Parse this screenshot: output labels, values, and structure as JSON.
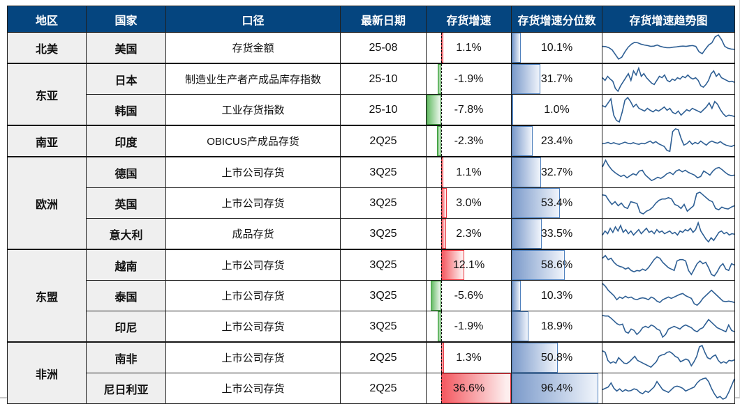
{
  "colors": {
    "header_bg": "#05457f",
    "header_text": "#ffffff",
    "label_bg": "#efefef",
    "positive_bar": "#f4575f",
    "positive_bar_border": "#e8343d",
    "negative_bar": "#66bb66",
    "negative_bar_border": "#3f9e3f",
    "percentile_bar": "#7b9aca",
    "percentile_bar_border": "#4f81bd",
    "sparkline": "#2e5f94",
    "grid": "#1f1f1f"
  },
  "growth_axis": {
    "min": -7.8,
    "max": 36.6
  },
  "table": {
    "headers": [
      "地区",
      "国家",
      "口径",
      "最新日期",
      "存货增速",
      "存货增速分位数",
      "存货增速趋势图"
    ],
    "rows": [
      {
        "region": "北美",
        "region_rowspan": 1,
        "group_start": false,
        "country": "美国",
        "metric": "存货金额",
        "date": "25-08",
        "growth": 1.1,
        "growth_label": "1.1%",
        "percentile": 10.1,
        "pct_label": "10.1%",
        "spark": [
          0.55,
          0.54,
          0.5,
          0.42,
          0.25,
          0.08,
          0.15,
          0.35,
          0.52,
          0.63,
          0.7,
          0.68,
          0.63,
          0.6,
          0.58,
          0.55,
          0.56,
          0.6,
          0.55,
          0.52,
          0.5,
          0.5,
          0.52,
          0.53,
          0.55,
          0.56,
          0.55,
          0.57,
          0.58,
          0.55,
          0.35,
          0.28,
          0.45,
          0.6,
          0.68,
          0.9,
          0.97,
          0.8,
          0.55,
          0.48,
          0.45,
          0.44
        ]
      },
      {
        "region": "东亚",
        "region_rowspan": 2,
        "group_start": true,
        "country": "日本",
        "metric": "制造业生产者产成品库存指数",
        "date": "25-10",
        "growth": -1.9,
        "growth_label": "-1.9%",
        "percentile": 31.7,
        "pct_label": "31.7%",
        "spark": [
          0.55,
          0.45,
          0.6,
          0.5,
          0.42,
          0.15,
          0.05,
          0.25,
          0.4,
          0.55,
          0.7,
          0.45,
          0.8,
          0.65,
          0.9,
          0.6,
          0.7,
          0.55,
          0.45,
          0.35,
          0.3,
          0.45,
          0.6,
          0.55,
          0.65,
          0.45,
          0.4,
          0.5,
          0.45,
          0.55,
          0.5,
          0.6,
          0.55,
          0.65,
          0.55,
          0.5,
          0.55,
          0.45,
          0.25,
          0.2,
          0.3,
          0.45,
          0.7,
          0.8,
          0.6,
          0.7,
          0.55,
          0.5,
          0.45,
          0.4,
          0.42,
          0.38
        ]
      },
      {
        "region": null,
        "region_rowspan": 0,
        "group_start": false,
        "country": "韩国",
        "metric": "工业存货指数",
        "date": "25-10",
        "growth": -7.8,
        "growth_label": "-7.8%",
        "percentile": 1.0,
        "pct_label": "1.0%",
        "spark": [
          0.65,
          0.6,
          0.75,
          0.9,
          0.3,
          0.1,
          0.05,
          0.4,
          0.85,
          0.95,
          0.8,
          0.6,
          0.7,
          0.55,
          0.5,
          0.45,
          0.55,
          0.48,
          0.42,
          0.5,
          0.45,
          0.52,
          0.6,
          0.48,
          0.55,
          0.4,
          0.35,
          0.45,
          0.3,
          0.4,
          0.5,
          0.45,
          0.55,
          0.5,
          0.45,
          0.4,
          0.5,
          0.6,
          0.75,
          0.55,
          0.8,
          0.7,
          0.5,
          0.35,
          0.25,
          0.3,
          0.28,
          0.25
        ]
      },
      {
        "region": "南亚",
        "region_rowspan": 1,
        "group_start": true,
        "country": "印度",
        "metric": "OBICUS产成品存货",
        "date": "2Q25",
        "growth": -2.3,
        "growth_label": "-2.3%",
        "percentile": 23.4,
        "pct_label": "23.4%",
        "spark": [
          0.4,
          0.42,
          0.45,
          0.4,
          0.44,
          0.4,
          0.38,
          0.42,
          0.46,
          0.42,
          0.4,
          0.44,
          0.4,
          0.38,
          0.42,
          0.4,
          0.45,
          0.5,
          0.42,
          0.48,
          0.4,
          0.35,
          0.3,
          0.15,
          0.12,
          0.85,
          0.95,
          0.92,
          0.6,
          0.35,
          0.4,
          0.5,
          0.38,
          0.45,
          0.4,
          0.5,
          0.42,
          0.35,
          0.45,
          0.5,
          0.45,
          0.42,
          0.48,
          0.4,
          0.35,
          0.32,
          0.3,
          0.35
        ]
      },
      {
        "region": "欧洲",
        "region_rowspan": 3,
        "group_start": true,
        "country": "德国",
        "metric": "上市公司存货",
        "date": "3Q25",
        "growth": 1.1,
        "growth_label": "1.1%",
        "percentile": 32.7,
        "pct_label": "32.7%",
        "spark": [
          0.7,
          0.95,
          0.75,
          0.6,
          0.5,
          0.42,
          0.35,
          0.4,
          0.3,
          0.38,
          0.45,
          0.4,
          0.55,
          0.58,
          0.4,
          0.3,
          0.2,
          0.25,
          0.32,
          0.28,
          0.35,
          0.45,
          0.5,
          0.42,
          0.55,
          0.6,
          0.52,
          0.58,
          0.5,
          0.45,
          0.4,
          0.3,
          0.35,
          0.55,
          0.48,
          0.4,
          0.55,
          0.65,
          0.68,
          0.6,
          0.5,
          0.42,
          0.38,
          0.4
        ]
      },
      {
        "region": null,
        "region_rowspan": 0,
        "group_start": false,
        "country": "英国",
        "metric": "上市公司存货",
        "date": "3Q25",
        "growth": 3.0,
        "growth_label": "3.0%",
        "percentile": 53.4,
        "pct_label": "53.4%",
        "spark": [
          0.8,
          0.78,
          0.6,
          0.45,
          0.55,
          0.4,
          0.5,
          0.35,
          0.3,
          0.55,
          0.52,
          0.48,
          0.15,
          0.1,
          0.2,
          0.25,
          0.35,
          0.5,
          0.6,
          0.65,
          0.65,
          0.7,
          0.65,
          0.45,
          0.4,
          0.3,
          0.45,
          0.2,
          0.3,
          0.4,
          0.85,
          0.9,
          0.8,
          0.7,
          0.6,
          0.55,
          0.3,
          0.25,
          0.35,
          0.3,
          0.28,
          0.35,
          0.4
        ]
      },
      {
        "region": null,
        "region_rowspan": 0,
        "group_start": false,
        "country": "意大利",
        "metric": "成品存货",
        "date": "3Q25",
        "growth": 2.3,
        "growth_label": "2.3%",
        "percentile": 33.5,
        "pct_label": "33.5%",
        "spark": [
          0.45,
          0.6,
          0.5,
          0.7,
          0.55,
          0.75,
          0.6,
          0.8,
          0.55,
          0.65,
          0.5,
          0.6,
          0.45,
          0.55,
          0.65,
          0.5,
          0.6,
          0.7,
          0.55,
          0.6,
          0.5,
          0.65,
          0.55,
          0.6,
          0.5,
          0.55,
          0.6,
          0.5,
          0.55,
          0.45,
          0.6,
          0.55,
          0.65,
          0.6,
          0.7,
          0.55,
          0.65,
          0.9,
          0.6,
          0.45,
          0.3,
          0.2,
          0.35,
          0.25,
          0.4,
          0.55,
          0.6,
          0.5,
          0.55,
          0.45,
          0.5,
          0.48
        ]
      },
      {
        "region": "东盟",
        "region_rowspan": 3,
        "group_start": true,
        "country": "越南",
        "metric": "上市公司存货",
        "date": "3Q25",
        "growth": 12.1,
        "growth_label": "12.1%",
        "percentile": 58.6,
        "pct_label": "58.6%",
        "spark": [
          0.75,
          0.85,
          0.7,
          0.75,
          0.6,
          0.5,
          0.45,
          0.42,
          0.35,
          0.4,
          0.3,
          0.25,
          0.3,
          0.28,
          0.35,
          0.3,
          0.4,
          0.55,
          0.7,
          0.8,
          0.75,
          0.6,
          0.5,
          0.4,
          0.35,
          0.3,
          0.65,
          0.7,
          0.7,
          0.65,
          0.3,
          0.15,
          0.35,
          0.55,
          0.65,
          0.55,
          0.6,
          0.4,
          0.15,
          0.1,
          0.25,
          0.45,
          0.55,
          0.35,
          0.3,
          0.55,
          0.5
        ]
      },
      {
        "region": null,
        "region_rowspan": 0,
        "group_start": false,
        "country": "泰国",
        "metric": "上市公司存货",
        "date": "3Q25",
        "growth": -5.6,
        "growth_label": "-5.6%",
        "percentile": 10.3,
        "pct_label": "10.3%",
        "spark": [
          0.95,
          0.85,
          0.7,
          0.6,
          0.5,
          0.35,
          0.45,
          0.4,
          0.48,
          0.42,
          0.45,
          0.38,
          0.35,
          0.4,
          0.42,
          0.4,
          0.35,
          0.45,
          0.4,
          0.3,
          0.25,
          0.35,
          0.4,
          0.45,
          0.4,
          0.45,
          0.5,
          0.55,
          0.58,
          0.5,
          0.45,
          0.4,
          0.2,
          0.15,
          0.25,
          0.4,
          0.5,
          0.6,
          0.7,
          0.6,
          0.5,
          0.4,
          0.3,
          0.28,
          0.3,
          0.28,
          0.25
        ]
      },
      {
        "region": null,
        "region_rowspan": 0,
        "group_start": false,
        "country": "印尼",
        "metric": "上市公司存货",
        "date": "3Q25",
        "growth": -1.9,
        "growth_label": "-1.9%",
        "percentile": 18.9,
        "pct_label": "18.9%",
        "spark": [
          0.9,
          0.88,
          0.88,
          0.8,
          0.7,
          0.6,
          0.55,
          0.58,
          0.3,
          0.25,
          0.4,
          0.35,
          0.2,
          0.3,
          0.45,
          0.5,
          0.45,
          0.55,
          0.5,
          0.4,
          0.35,
          0.1,
          0.2,
          0.4,
          0.45,
          0.5,
          0.45,
          0.4,
          0.5,
          0.55,
          0.5,
          0.45,
          0.35,
          0.3,
          0.4,
          0.45,
          0.6,
          0.75,
          0.65,
          0.55,
          0.45,
          0.4,
          0.35,
          0.3,
          0.55,
          0.35,
          0.3
        ]
      },
      {
        "region": "非洲",
        "region_rowspan": 2,
        "group_start": true,
        "country": "南非",
        "metric": "上市公司存货",
        "date": "2Q25",
        "growth": 1.3,
        "growth_label": "1.3%",
        "percentile": 50.8,
        "pct_label": "50.8%",
        "spark": [
          0.75,
          0.7,
          0.4,
          0.3,
          0.35,
          0.3,
          0.5,
          0.4,
          0.3,
          0.28,
          0.35,
          0.45,
          0.55,
          0.4,
          0.35,
          0.3,
          0.25,
          0.2,
          0.15,
          0.25,
          0.35,
          0.55,
          0.6,
          0.62,
          0.7,
          0.72,
          0.65,
          0.55,
          0.5,
          0.35,
          0.4,
          0.45,
          0.4,
          0.2,
          0.35,
          0.55,
          0.9,
          0.95,
          0.7,
          0.5,
          0.45,
          0.55,
          0.6,
          0.4,
          0.3,
          0.35,
          0.3,
          0.4,
          0.38,
          0.42
        ]
      },
      {
        "region": null,
        "region_rowspan": 0,
        "group_start": false,
        "country": "尼日利亚",
        "metric": "上市公司存货",
        "date": "2Q25",
        "growth": 36.6,
        "growth_label": "36.6%",
        "percentile": 96.4,
        "pct_label": "96.4%",
        "spark": [
          0.45,
          0.5,
          0.55,
          0.7,
          0.5,
          0.4,
          0.48,
          0.38,
          0.45,
          0.4,
          0.42,
          0.48,
          0.45,
          0.35,
          0.3,
          0.4,
          0.35,
          0.45,
          0.55,
          0.75,
          0.6,
          0.45,
          0.4,
          0.35,
          0.45,
          0.55,
          0.58,
          0.55,
          0.5,
          0.4,
          0.45,
          0.5,
          0.55,
          0.7,
          0.8,
          0.85,
          0.88,
          0.75,
          0.5,
          0.3,
          0.15,
          0.2,
          0.1,
          0.15,
          0.35,
          0.6,
          0.85
        ]
      }
    ]
  },
  "chart_data": {
    "type": "table",
    "columns": [
      "地区",
      "国家",
      "口径",
      "最新日期",
      "存货增速",
      "存货增速分位数",
      "存货增速趋势图"
    ],
    "rows": [
      [
        "北美",
        "美国",
        "存货金额",
        "25-08",
        "1.1%",
        "10.1%"
      ],
      [
        "东亚",
        "日本",
        "制造业生产者产成品库存指数",
        "25-10",
        "-1.9%",
        "31.7%"
      ],
      [
        "东亚",
        "韩国",
        "工业存货指数",
        "25-10",
        "-7.8%",
        "1.0%"
      ],
      [
        "南亚",
        "印度",
        "OBICUS产成品存货",
        "2Q25",
        "-2.3%",
        "23.4%"
      ],
      [
        "欧洲",
        "德国",
        "上市公司存货",
        "3Q25",
        "1.1%",
        "32.7%"
      ],
      [
        "欧洲",
        "英国",
        "上市公司存货",
        "3Q25",
        "3.0%",
        "53.4%"
      ],
      [
        "欧洲",
        "意大利",
        "成品存货",
        "3Q25",
        "2.3%",
        "33.5%"
      ],
      [
        "东盟",
        "越南",
        "上市公司存货",
        "3Q25",
        "12.1%",
        "58.6%"
      ],
      [
        "东盟",
        "泰国",
        "上市公司存货",
        "3Q25",
        "-5.6%",
        "10.3%"
      ],
      [
        "东盟",
        "印尼",
        "上市公司存货",
        "3Q25",
        "-1.9%",
        "18.9%"
      ],
      [
        "非洲",
        "南非",
        "上市公司存货",
        "2Q25",
        "1.3%",
        "50.8%"
      ],
      [
        "非洲",
        "尼日利亚",
        "上市公司存货",
        "2Q25",
        "36.6%",
        "96.4%"
      ]
    ],
    "growth_values": [
      1.1,
      -1.9,
      -7.8,
      -2.3,
      1.1,
      3.0,
      2.3,
      12.1,
      -5.6,
      -1.9,
      1.3,
      36.6
    ],
    "percentile_values": [
      10.1,
      31.7,
      1.0,
      23.4,
      32.7,
      53.4,
      33.5,
      58.6,
      10.3,
      18.9,
      50.8,
      96.4
    ],
    "growth_axis_range": [
      -7.8,
      36.6
    ],
    "positive_bar_color": "#f4575f",
    "negative_bar_color": "#66bb66",
    "percentile_bar_color": "#7b9aca"
  }
}
